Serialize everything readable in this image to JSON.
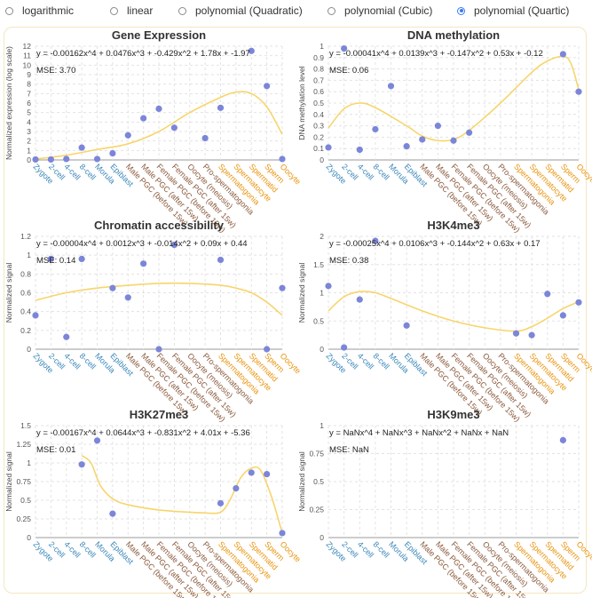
{
  "regression_options": [
    {
      "label": "logarithmic",
      "checked": false
    },
    {
      "label": "linear",
      "checked": false
    },
    {
      "label": "polynomial (Quadratic)",
      "checked": false
    },
    {
      "label": "polynomial (Cubic)",
      "checked": false
    },
    {
      "label": "polynomial (Quartic)",
      "checked": true
    }
  ],
  "colors": {
    "point": "#7b86d9",
    "trend": "#f7d56b",
    "early_label": "#3a87b8",
    "mid_label": "#8b5a3c",
    "late_label": "#e8930c",
    "grid": "#e3e3e3",
    "axis": "#9a9a9a"
  },
  "chart_data": [
    {
      "type": "scatter",
      "title": "Gene Expression",
      "ylabel": "Normalized expression (log scale)",
      "equation": "y = -0.00162x^4 + 0.0476x^3 + -0.429x^2 + 1.78x + -1.97",
      "mse": "MSE: 3.70",
      "categories": [
        "Zygote",
        "2-cell",
        "4-cell",
        "8-cell",
        "Morula",
        "Epiblast",
        "Male PGC (before 15w)",
        "Male PGC (after 15w)",
        "Female PGC (before 15w)",
        "Female PGC (after 15w)",
        "Oocyte (meiosis)",
        "Pro-spermatogonia",
        "Spermatogonia",
        "Spermatocyte",
        "Spermatid",
        "Sperm",
        "Oocyte"
      ],
      "category_groups": [
        "early",
        "early",
        "early",
        "early",
        "early",
        "early",
        "mid",
        "mid",
        "mid",
        "mid",
        "mid",
        "mid",
        "late",
        "late",
        "late",
        "late",
        "late"
      ],
      "ylim": [
        0,
        12
      ],
      "yticks": [
        0,
        1,
        2,
        3,
        4,
        5,
        6,
        7,
        8,
        9,
        10,
        11,
        12
      ],
      "points": [
        [
          0,
          0.05
        ],
        [
          1,
          0.05
        ],
        [
          2,
          0.1
        ],
        [
          3,
          1.3
        ],
        [
          4,
          0.1
        ],
        [
          5,
          0.7
        ],
        [
          6,
          2.6
        ],
        [
          7,
          4.4
        ],
        [
          8,
          5.4
        ],
        [
          9,
          3.4
        ],
        [
          11,
          2.3
        ],
        [
          12,
          5.5
        ],
        [
          14,
          11.5
        ],
        [
          15,
          7.8
        ],
        [
          16,
          0.1
        ]
      ],
      "trend": [
        [
          0,
          0.1
        ],
        [
          2,
          0.5
        ],
        [
          4,
          1.1
        ],
        [
          6,
          1.7
        ],
        [
          8,
          3.0
        ],
        [
          10,
          5.0
        ],
        [
          12,
          6.6
        ],
        [
          13,
          7.15
        ],
        [
          14,
          7.0
        ],
        [
          15,
          5.6
        ],
        [
          16,
          2.7
        ]
      ]
    },
    {
      "type": "scatter",
      "title": "DNA methylation",
      "ylabel": "DNA methylation level",
      "equation": "y = -0.00041x^4 + 0.0139x^3 + -0.147x^2 + 0.53x + -0.12",
      "mse": "MSE: 0.06",
      "categories": [
        "Zygote",
        "2-cell",
        "4-cell",
        "8-cell",
        "Morula",
        "Epiblast",
        "Male PGC (before 15w)",
        "Male PGC (after 15w)",
        "Female PGC (before 15w)",
        "Female PGC (after 15w)",
        "Oocyte (meiosis)",
        "Pro-spermatogonia",
        "Spermatogonia",
        "Spermatocyte",
        "Spermatid",
        "Sperm",
        "Oocyte"
      ],
      "category_groups": [
        "early",
        "early",
        "early",
        "early",
        "early",
        "early",
        "mid",
        "mid",
        "mid",
        "mid",
        "mid",
        "mid",
        "late",
        "late",
        "late",
        "late",
        "late"
      ],
      "ylim": [
        0,
        1
      ],
      "yticks": [
        0,
        0.1,
        0.2,
        0.3,
        0.4,
        0.5,
        0.6,
        0.7,
        0.8,
        0.9,
        1
      ],
      "points": [
        [
          0,
          0.11
        ],
        [
          1,
          0.98
        ],
        [
          2,
          0.09
        ],
        [
          3,
          0.27
        ],
        [
          4,
          0.65
        ],
        [
          5,
          0.12
        ],
        [
          6,
          0.18
        ],
        [
          7,
          0.3
        ],
        [
          8,
          0.17
        ],
        [
          9,
          0.24
        ],
        [
          15,
          0.93
        ],
        [
          16,
          0.6
        ]
      ],
      "trend": [
        [
          0,
          0.28
        ],
        [
          1,
          0.45
        ],
        [
          2,
          0.5
        ],
        [
          3,
          0.46
        ],
        [
          5,
          0.3
        ],
        [
          6,
          0.21
        ],
        [
          7,
          0.17
        ],
        [
          8,
          0.18
        ],
        [
          9,
          0.26
        ],
        [
          11,
          0.5
        ],
        [
          13,
          0.77
        ],
        [
          14,
          0.87
        ],
        [
          15,
          0.91
        ],
        [
          15.5,
          0.85
        ],
        [
          16,
          0.62
        ]
      ]
    },
    {
      "type": "scatter",
      "title": "Chromatin accessibility",
      "ylabel": "Normalized signal",
      "equation": "y = -0.00004x^4 + 0.0012x^3 + -0.014x^2 + 0.09x + 0.44",
      "mse": "MSE: 0.14",
      "categories": [
        "Zygote",
        "2-cell",
        "4-cell",
        "8-cell",
        "Morula",
        "Epiblast",
        "Male PGC (before 15w)",
        "Male PGC (after 15w)",
        "Female PGC (before 15w)",
        "Female PGC (after 15w)",
        "Oocyte (meiosis)",
        "Pro-spermatogonia",
        "Spermatogonia",
        "Spermatocyte",
        "Spermatid",
        "Sperm",
        "Oocyte"
      ],
      "category_groups": [
        "early",
        "early",
        "early",
        "early",
        "early",
        "early",
        "mid",
        "mid",
        "mid",
        "mid",
        "mid",
        "mid",
        "late",
        "late",
        "late",
        "late",
        "late"
      ],
      "ylim": [
        0,
        1.2
      ],
      "yticks": [
        0,
        0.2,
        0.4,
        0.6,
        0.8,
        1,
        1.2
      ],
      "ytick_labels": [
        "0",
        "0.2",
        "0.4",
        "0.6",
        "0.8",
        "1",
        "1.2"
      ],
      "points": [
        [
          0,
          0.36
        ],
        [
          1,
          0.96
        ],
        [
          2,
          0.13
        ],
        [
          3,
          0.96
        ],
        [
          5,
          0.65
        ],
        [
          6,
          0.55
        ],
        [
          7,
          0.91
        ],
        [
          8,
          0.0
        ],
        [
          9,
          1.11
        ],
        [
          12,
          0.95
        ],
        [
          15,
          0.0
        ],
        [
          16,
          0.65
        ]
      ],
      "trend": [
        [
          0,
          0.52
        ],
        [
          2,
          0.6
        ],
        [
          4,
          0.65
        ],
        [
          6,
          0.68
        ],
        [
          8,
          0.7
        ],
        [
          10,
          0.7
        ],
        [
          12,
          0.68
        ],
        [
          13,
          0.65
        ],
        [
          14,
          0.6
        ],
        [
          15,
          0.5
        ],
        [
          16,
          0.36
        ]
      ]
    },
    {
      "type": "scatter",
      "title": "H3K4me3",
      "ylabel": "Normalized signal",
      "equation": "y = -0.00025x^4 + 0.0106x^3 + -0.144x^2 + 0.63x + 0.17",
      "mse": "MSE: 0.38",
      "categories": [
        "Zygote",
        "2-cell",
        "4-cell",
        "8-cell",
        "Morula",
        "Epiblast",
        "Male PGC (before 15w)",
        "Male PGC (after 15w)",
        "Female PGC (before 15w)",
        "Female PGC (after 15w)",
        "Oocyte (meiosis)",
        "Pro-spermatogonia",
        "Spermatogonia",
        "Spermatocyte",
        "Spermatid",
        "Sperm",
        "Oocyte"
      ],
      "category_groups": [
        "early",
        "early",
        "early",
        "early",
        "early",
        "early",
        "mid",
        "mid",
        "mid",
        "mid",
        "mid",
        "mid",
        "late",
        "late",
        "late",
        "late",
        "late"
      ],
      "ylim": [
        0,
        2
      ],
      "yticks": [
        0,
        0.5,
        1,
        1.5,
        2
      ],
      "ytick_labels": [
        "0",
        "0.5",
        "1",
        "1.5",
        "2"
      ],
      "points": [
        [
          0,
          1.12
        ],
        [
          1,
          0.03
        ],
        [
          2,
          0.88
        ],
        [
          3,
          1.92
        ],
        [
          5,
          0.42
        ],
        [
          12,
          0.28
        ],
        [
          13,
          0.25
        ],
        [
          14,
          0.98
        ],
        [
          15,
          0.6
        ],
        [
          16,
          0.83
        ]
      ],
      "trend": [
        [
          0,
          0.68
        ],
        [
          1,
          0.93
        ],
        [
          2,
          1.02
        ],
        [
          3,
          1.0
        ],
        [
          4,
          0.9
        ],
        [
          6,
          0.68
        ],
        [
          8,
          0.5
        ],
        [
          10,
          0.38
        ],
        [
          12,
          0.32
        ],
        [
          13,
          0.4
        ],
        [
          14,
          0.55
        ],
        [
          15,
          0.72
        ],
        [
          16,
          0.84
        ]
      ]
    },
    {
      "type": "scatter",
      "title": "H3K27me3",
      "ylabel": "Normalized signal",
      "equation": "y = -0.00167x^4 + 0.0644x^3 + -0.831x^2 + 4.01x + -5.36",
      "mse": "MSE: 0.01",
      "categories": [
        "Zygote",
        "2-cell",
        "4-cell",
        "8-cell",
        "Morula",
        "Epiblast",
        "Male PGC (before 15w)",
        "Male PGC (after 15w)",
        "Female PGC (before 15w)",
        "Female PGC (after 15w)",
        "Oocyte (meiosis)",
        "Pro-spermatogonia",
        "Spermatogonia",
        "Spermatocyte",
        "Spermatid",
        "Sperm",
        "Oocyte"
      ],
      "category_groups": [
        "early",
        "early",
        "early",
        "early",
        "early",
        "early",
        "mid",
        "mid",
        "mid",
        "mid",
        "mid",
        "mid",
        "late",
        "late",
        "late",
        "late",
        "late"
      ],
      "ylim": [
        0,
        1.5
      ],
      "yticks": [
        0,
        0.25,
        0.5,
        0.75,
        1,
        1.25,
        1.5
      ],
      "ytick_labels": [
        "0",
        "0.25",
        "0.5",
        "0.75",
        "1",
        "1.25",
        "1.5"
      ],
      "points": [
        [
          3,
          0.98
        ],
        [
          4,
          1.3
        ],
        [
          5,
          0.32
        ],
        [
          12,
          0.46
        ],
        [
          13,
          0.66
        ],
        [
          14,
          0.87
        ],
        [
          15,
          0.85
        ],
        [
          16,
          0.06
        ]
      ],
      "trend": [
        [
          3,
          1.1
        ],
        [
          3.6,
          1.0
        ],
        [
          4.2,
          0.7
        ],
        [
          5,
          0.52
        ],
        [
          6,
          0.44
        ],
        [
          8,
          0.37
        ],
        [
          10,
          0.34
        ],
        [
          11,
          0.33
        ],
        [
          12,
          0.34
        ],
        [
          12.6,
          0.5
        ],
        [
          13.3,
          0.8
        ],
        [
          14,
          0.93
        ],
        [
          14.6,
          0.9
        ],
        [
          15.3,
          0.55
        ],
        [
          16,
          0.06
        ]
      ]
    },
    {
      "type": "scatter",
      "title": "H3K9me3",
      "ylabel": "Normalized signal",
      "equation": "y = NaNx^4 + NaNx^3 + NaNx^2 + NaNx + NaN",
      "mse": "MSE: NaN",
      "categories": [
        "Zygote",
        "2-cell",
        "4-cell",
        "8-cell",
        "Morula",
        "Epiblast",
        "Male PGC (before 15w)",
        "Male PGC (after 15w)",
        "Female PGC (before 15w)",
        "Female PGC (after 15w)",
        "Oocyte (meiosis)",
        "Pro-spermatogonia",
        "Spermatogonia",
        "Spermatocyte",
        "Spermatid",
        "Sperm",
        "Oocyte"
      ],
      "category_groups": [
        "early",
        "early",
        "early",
        "early",
        "early",
        "early",
        "mid",
        "mid",
        "mid",
        "mid",
        "mid",
        "mid",
        "late",
        "late",
        "late",
        "late",
        "late"
      ],
      "ylim": [
        0,
        1
      ],
      "yticks": [
        0,
        0.25,
        0.5,
        0.75,
        1
      ],
      "ytick_labels": [
        "0",
        "0.25",
        "0.5",
        "0.75",
        "1"
      ],
      "points": [
        [
          15,
          0.87
        ]
      ],
      "trend": []
    }
  ]
}
